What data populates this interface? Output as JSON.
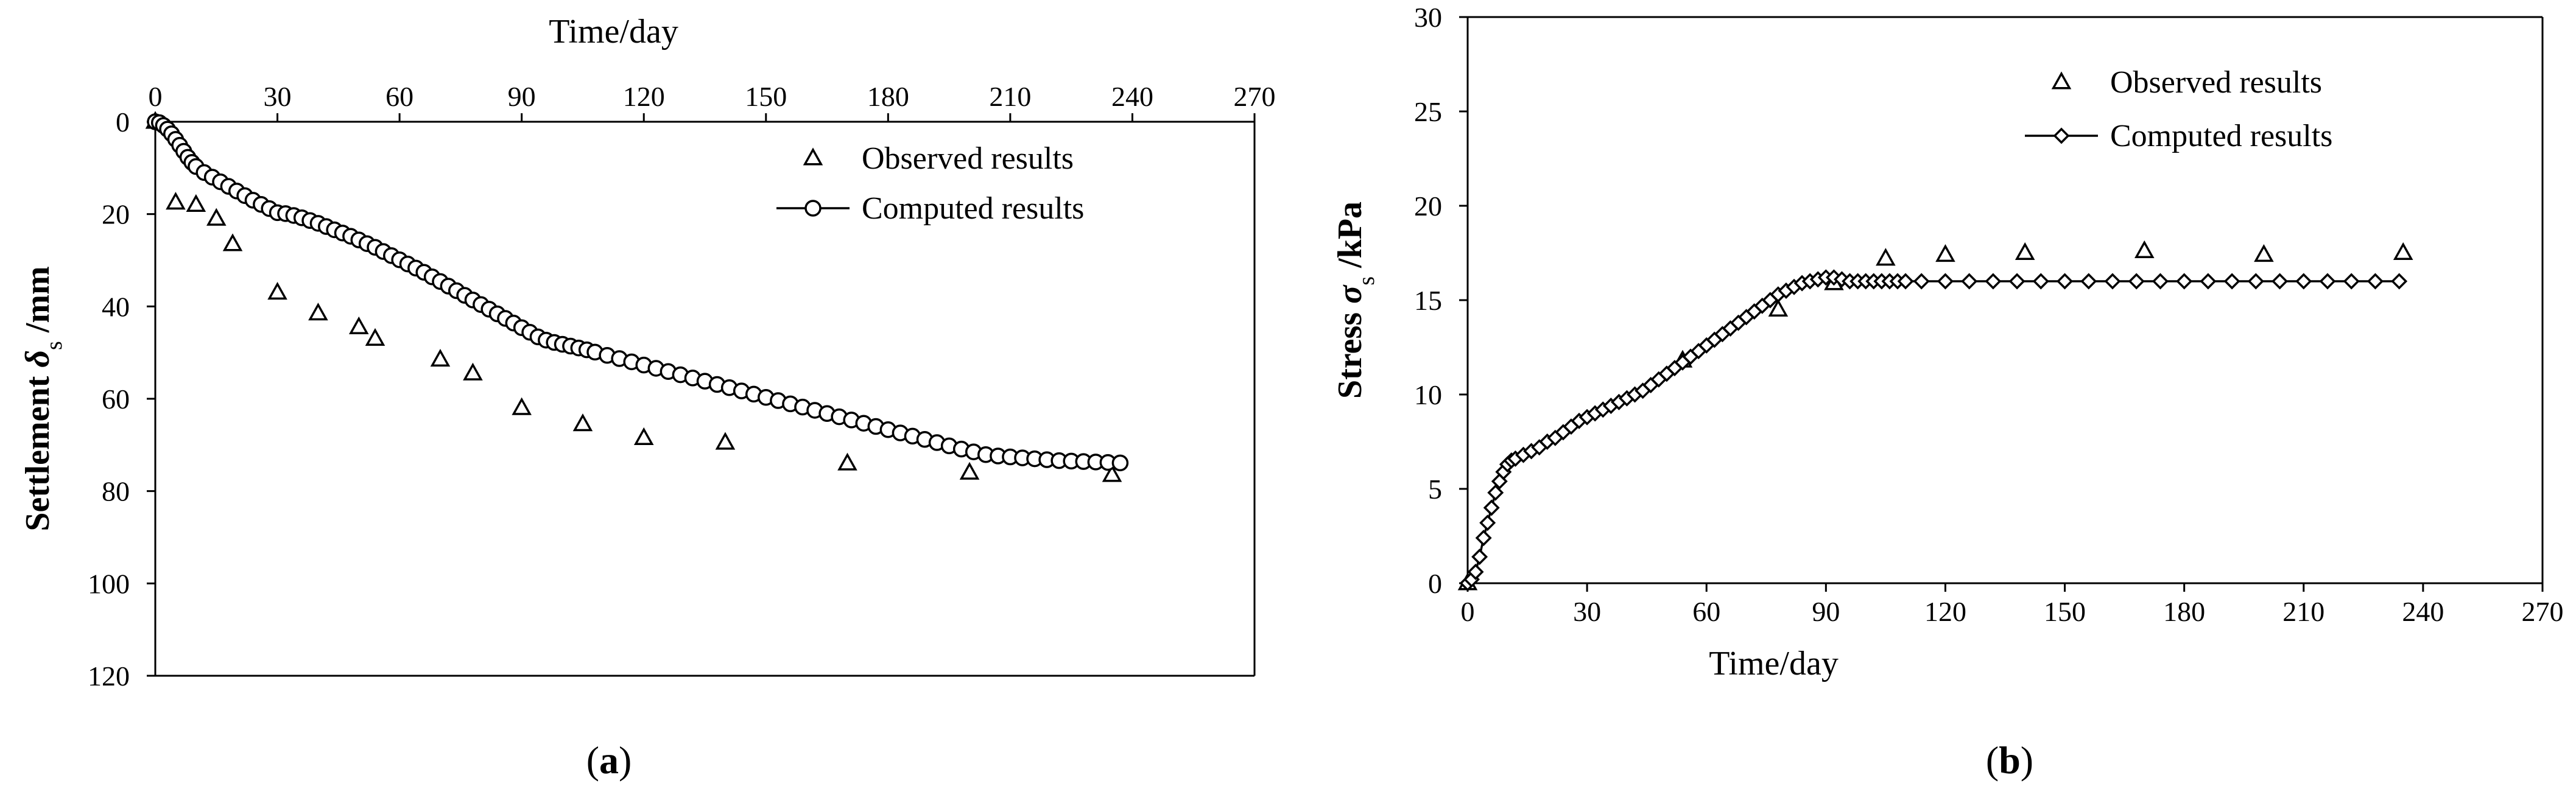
{
  "figure": {
    "panel_labels": [
      "(a)",
      "(b)"
    ]
  },
  "chart_data": [
    {
      "type": "scatter",
      "panel": "a",
      "title": "",
      "xlabel": "Time/day",
      "ylabel_prefix": "Settlement ",
      "ylabel_symbol": "δ",
      "ylabel_subscript": "s",
      "ylabel_suffix": " /mm",
      "x_axis_position": "top",
      "y_inverted": true,
      "xlim": [
        0,
        270
      ],
      "ylim": [
        0,
        120
      ],
      "xticks": [
        0,
        30,
        60,
        90,
        120,
        150,
        180,
        210,
        240,
        270
      ],
      "yticks": [
        0,
        20,
        40,
        60,
        80,
        100,
        120
      ],
      "grid": false,
      "legend_position": "top-right",
      "series": [
        {
          "name": "Observed results",
          "marker": "triangle",
          "line": false,
          "x": [
            0,
            5,
            10,
            15,
            19,
            30,
            40,
            50,
            54,
            70,
            78,
            90,
            105,
            120,
            140,
            170,
            200,
            235
          ],
          "y": [
            0,
            17.5,
            18,
            21,
            26.5,
            37,
            41.5,
            44.5,
            47,
            51.5,
            54.5,
            62,
            65.5,
            68.5,
            69.5,
            74,
            76,
            76.5
          ]
        },
        {
          "name": "Computed results",
          "marker": "circle",
          "line": true,
          "x": [
            0,
            1,
            2,
            3,
            4,
            5,
            6,
            7,
            8,
            9,
            10,
            12,
            14,
            16,
            18,
            20,
            22,
            24,
            26,
            28,
            30,
            32,
            34,
            36,
            38,
            40,
            42,
            44,
            46,
            48,
            50,
            52,
            54,
            56,
            58,
            60,
            62,
            64,
            66,
            68,
            70,
            72,
            74,
            76,
            78,
            80,
            82,
            84,
            86,
            88,
            90,
            92,
            94,
            96,
            98,
            100,
            102,
            104,
            106,
            108,
            111,
            114,
            117,
            120,
            123,
            126,
            129,
            132,
            135,
            138,
            141,
            144,
            147,
            150,
            153,
            156,
            159,
            162,
            165,
            168,
            171,
            174,
            177,
            180,
            183,
            186,
            189,
            192,
            195,
            198,
            201,
            204,
            207,
            210,
            213,
            216,
            219,
            222,
            225,
            228,
            231,
            234,
            237
          ],
          "y": [
            0,
            0.2,
            0.8,
            1.6,
            2.6,
            3.8,
            5.1,
            6.4,
            7.7,
            8.8,
            9.7,
            11.0,
            12.0,
            13.0,
            14.0,
            15.0,
            16.0,
            17.0,
            17.9,
            18.8,
            19.7,
            19.9,
            20.3,
            20.8,
            21.4,
            22.0,
            22.7,
            23.4,
            24.1,
            24.8,
            25.6,
            26.4,
            27.2,
            28.1,
            29.0,
            29.9,
            30.8,
            31.7,
            32.6,
            33.6,
            34.6,
            35.6,
            36.6,
            37.6,
            38.6,
            39.6,
            40.6,
            41.6,
            42.6,
            43.6,
            44.6,
            45.6,
            46.6,
            47.3,
            47.8,
            48.2,
            48.6,
            49.0,
            49.4,
            49.9,
            50.6,
            51.3,
            52.0,
            52.7,
            53.4,
            54.1,
            54.8,
            55.5,
            56.2,
            56.9,
            57.6,
            58.3,
            59.0,
            59.7,
            60.4,
            61.1,
            61.8,
            62.5,
            63.2,
            63.9,
            64.6,
            65.3,
            66.0,
            66.7,
            67.4,
            68.1,
            68.8,
            69.5,
            70.2,
            70.9,
            71.5,
            72.1,
            72.4,
            72.6,
            72.8,
            73.0,
            73.2,
            73.4,
            73.5,
            73.6,
            73.7,
            73.8,
            73.9
          ]
        }
      ]
    },
    {
      "type": "scatter",
      "panel": "b",
      "title": "",
      "xlabel": "Time/day",
      "ylabel_prefix": "Stress ",
      "ylabel_symbol": "σ",
      "ylabel_subscript": "s",
      "ylabel_suffix": " /kPa",
      "x_axis_position": "bottom",
      "y_inverted": false,
      "xlim": [
        0,
        270
      ],
      "ylim": [
        0,
        30
      ],
      "xticks": [
        0,
        30,
        60,
        90,
        120,
        150,
        180,
        210,
        240,
        270
      ],
      "yticks": [
        0,
        5,
        10,
        15,
        20,
        25,
        30
      ],
      "grid": false,
      "legend_position": "top-right",
      "series": [
        {
          "name": "Observed results",
          "marker": "triangle",
          "line": false,
          "x": [
            0,
            54,
            78,
            92,
            105,
            120,
            140,
            170,
            200,
            235
          ],
          "y": [
            0,
            11.8,
            14.5,
            15.9,
            17.2,
            17.4,
            17.5,
            17.6,
            17.4,
            17.5
          ]
        },
        {
          "name": "Computed results",
          "marker": "diamond",
          "line": true,
          "x": [
            0,
            1,
            2,
            3,
            4,
            5,
            6,
            7,
            8,
            9,
            10,
            11,
            12,
            14,
            16,
            18,
            20,
            22,
            24,
            26,
            28,
            30,
            32,
            34,
            36,
            38,
            40,
            42,
            44,
            46,
            48,
            50,
            52,
            54,
            56,
            58,
            60,
            62,
            64,
            66,
            68,
            70,
            72,
            74,
            76,
            78,
            80,
            82,
            84,
            86,
            88,
            90,
            92,
            94,
            96,
            98,
            100,
            102,
            104,
            106,
            108,
            110,
            114,
            120,
            126,
            132,
            138,
            144,
            150,
            156,
            162,
            168,
            174,
            180,
            186,
            192,
            198,
            204,
            210,
            216,
            222,
            228,
            234
          ],
          "y": [
            0,
            0.2,
            0.6,
            1.4,
            2.4,
            3.2,
            4.0,
            4.8,
            5.4,
            5.9,
            6.3,
            6.5,
            6.6,
            6.8,
            7.0,
            7.2,
            7.5,
            7.7,
            8.0,
            8.3,
            8.6,
            8.8,
            9.0,
            9.2,
            9.4,
            9.6,
            9.8,
            10.0,
            10.2,
            10.5,
            10.8,
            11.1,
            11.4,
            11.7,
            12.0,
            12.3,
            12.6,
            12.9,
            13.2,
            13.5,
            13.8,
            14.1,
            14.4,
            14.7,
            15.0,
            15.3,
            15.5,
            15.7,
            15.9,
            16.0,
            16.1,
            16.2,
            16.2,
            16.1,
            16.0,
            16.0,
            16.0,
            16.0,
            16.0,
            16.0,
            16.0,
            16.0,
            16.0,
            16.0,
            16.0,
            16.0,
            16.0,
            16.0,
            16.0,
            16.0,
            16.0,
            16.0,
            16.0,
            16.0,
            16.0,
            16.0,
            16.0,
            16.0,
            16.0,
            16.0,
            16.0,
            16.0,
            16.0
          ]
        }
      ]
    }
  ]
}
